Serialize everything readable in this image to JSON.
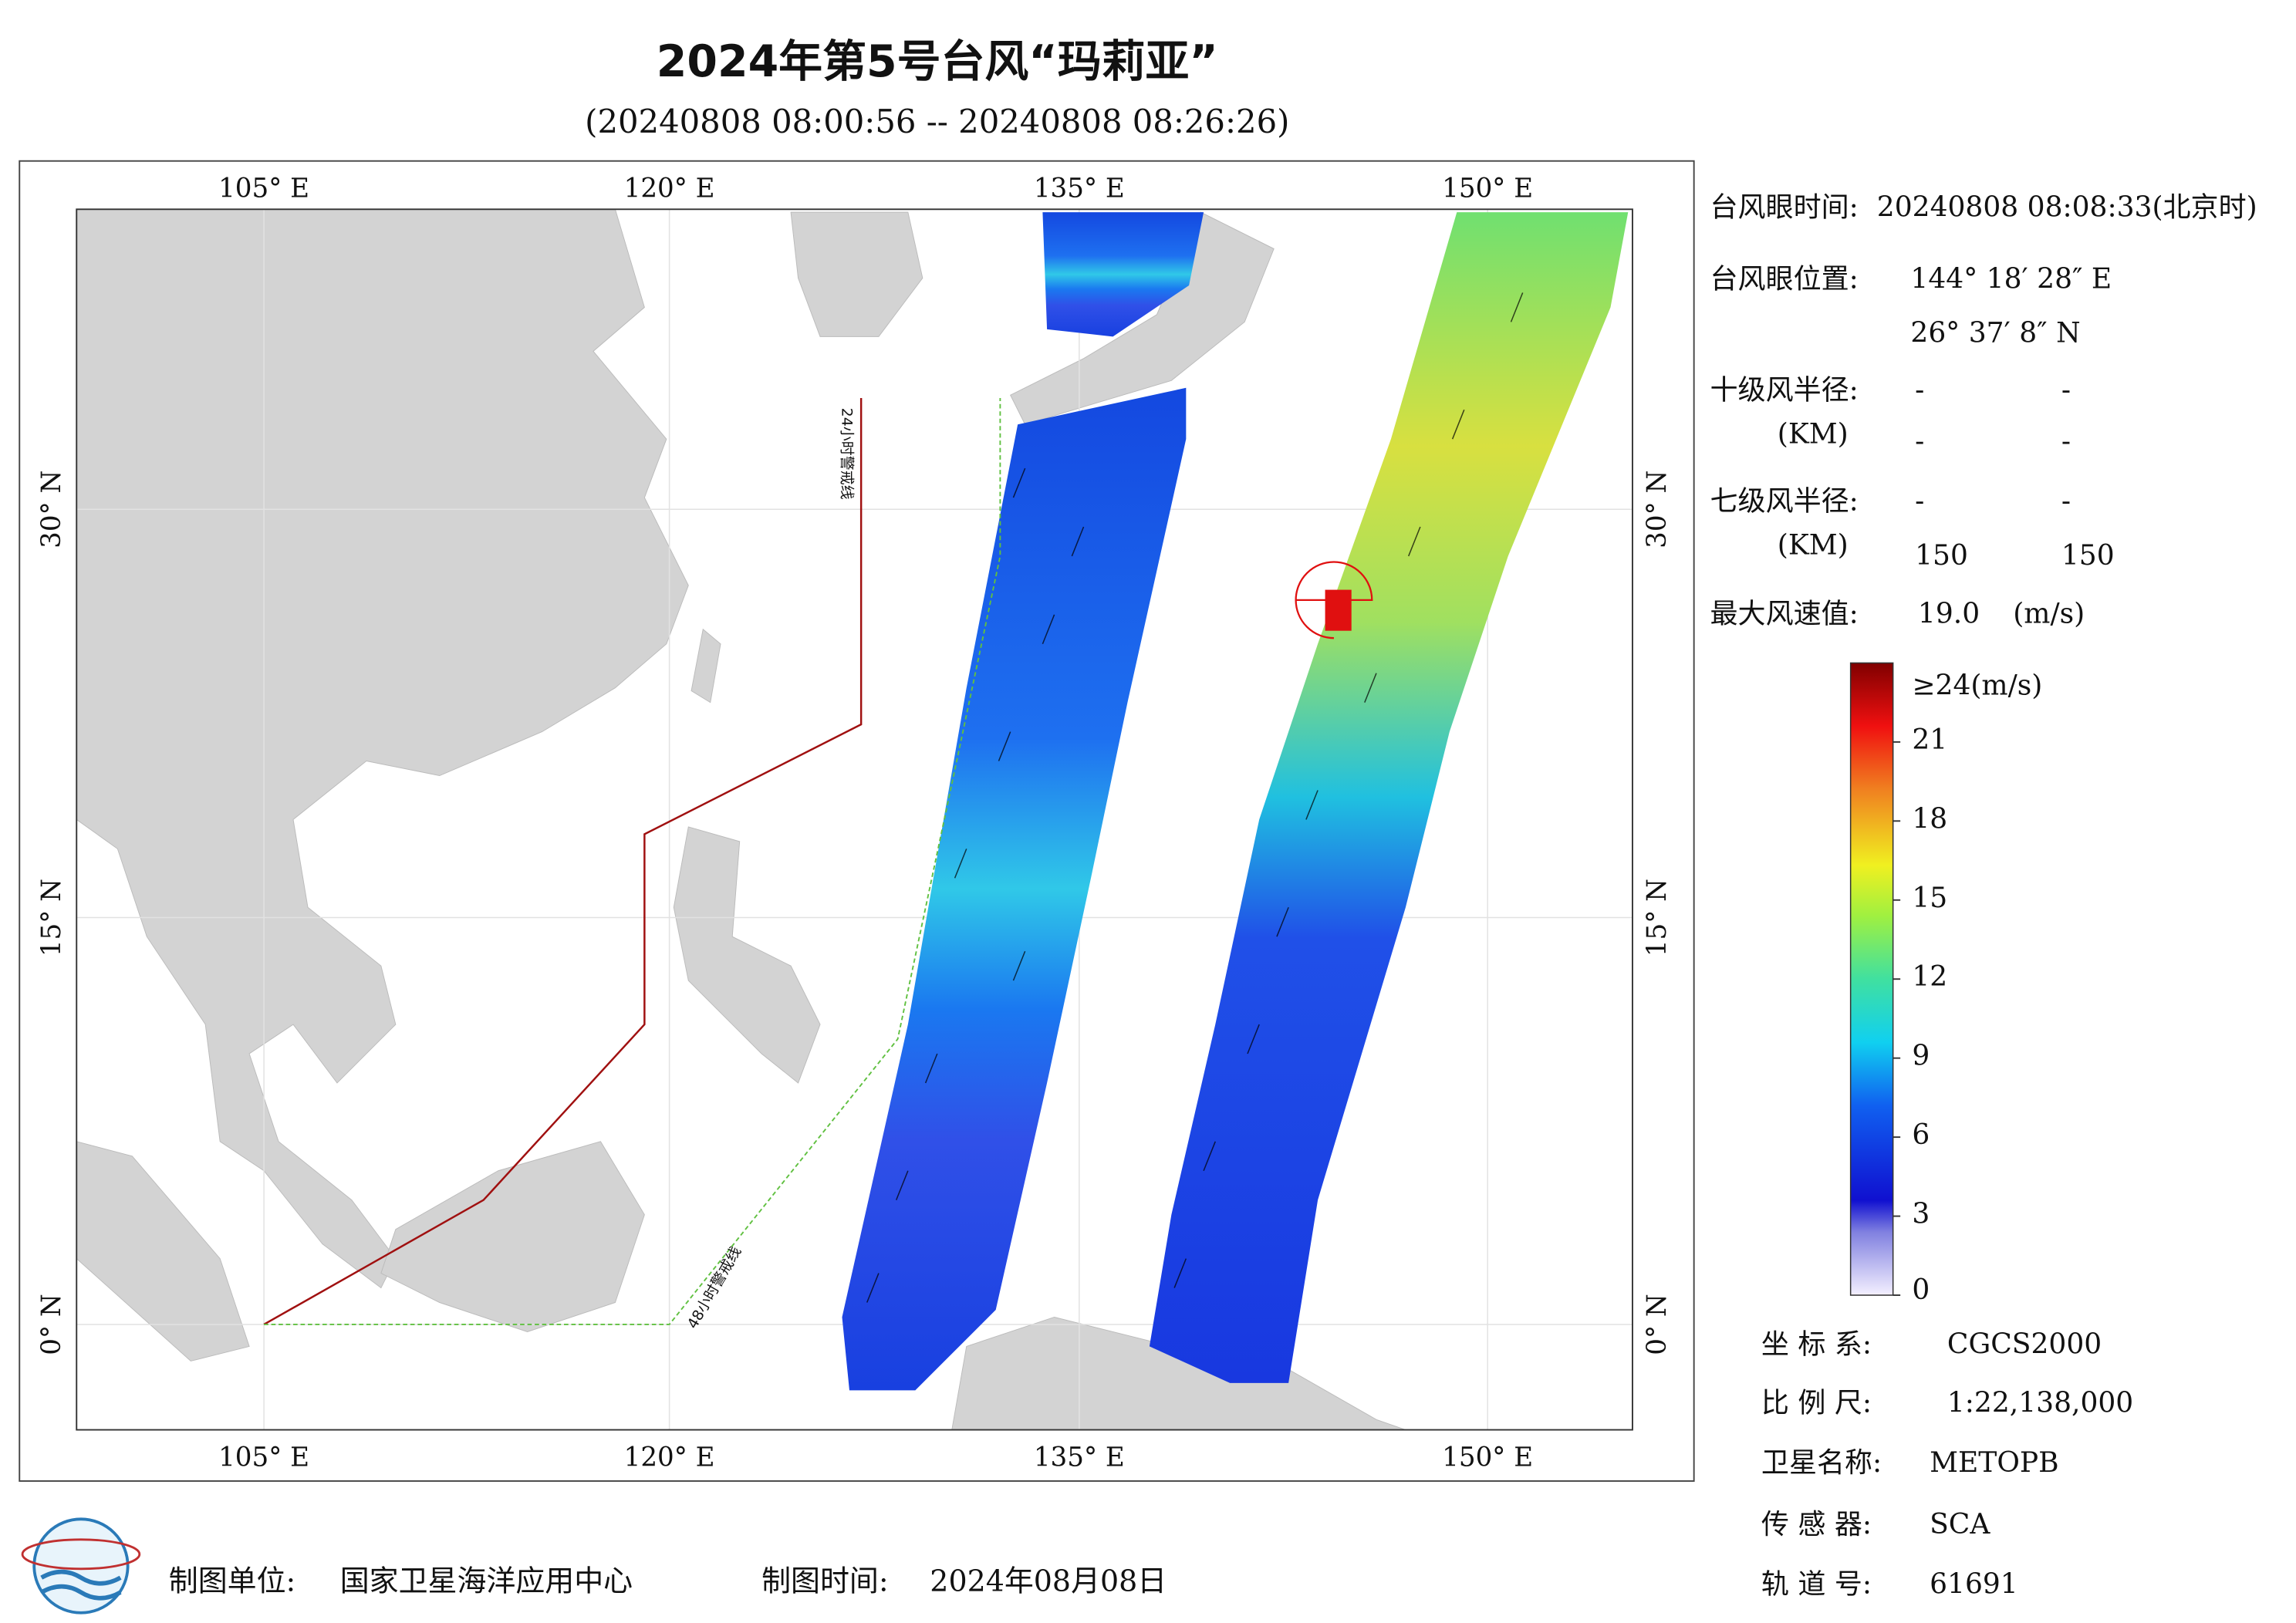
{
  "title": "2024年第5号台风“玛莉亚”",
  "subtitle": "(20240808 08:00:56 -- 20240808 08:26:26)",
  "map": {
    "lon_labels": [
      "105° E",
      "120° E",
      "135° E",
      "150° E"
    ],
    "lat_labels": [
      "30° N",
      "15° N",
      "0° N"
    ],
    "warning_lines": [
      "24小时警戒线",
      "48小时警戒线"
    ]
  },
  "info": {
    "eye_time_label": "台风眼时间:",
    "eye_time": "20240808 08:08:33(北京时)",
    "eye_position_label": "台风眼位置:",
    "eye_lon": "144° 18′ 28″ E",
    "eye_lat": "26° 37′ 8″ N",
    "r10_label": "十级风半径:",
    "r10_unit": "(KM)",
    "r10_values": [
      "-",
      "-",
      "-",
      "-"
    ],
    "r7_label": "七级风半径:",
    "r7_unit": "(KM)",
    "r7_values": [
      "-",
      "-",
      "150",
      "150"
    ],
    "max_wind_label": "最大风速值:",
    "max_wind": "19.0",
    "max_wind_unit": "(m/s)"
  },
  "colorbar": {
    "top_label": "≥24(m/s)",
    "lim": [
      0,
      24
    ],
    "ticks": [
      21,
      18,
      15,
      12,
      9,
      6,
      3,
      0
    ]
  },
  "meta": [
    {
      "label": "坐 标 系:",
      "value": "CGCS2000"
    },
    {
      "label": "比 例 尺:",
      "value": "1:22,138,000"
    },
    {
      "label": "卫星名称:",
      "value": "METOPB"
    },
    {
      "label": "传 感 器:",
      "value": "SCA"
    },
    {
      "label": "轨 道 号:",
      "value": "61691"
    }
  ],
  "footer": {
    "producer_label": "制图单位:",
    "producer": "国家卫星海洋应用中心",
    "date_label": "制图时间:",
    "date": "2024年08月08日"
  }
}
